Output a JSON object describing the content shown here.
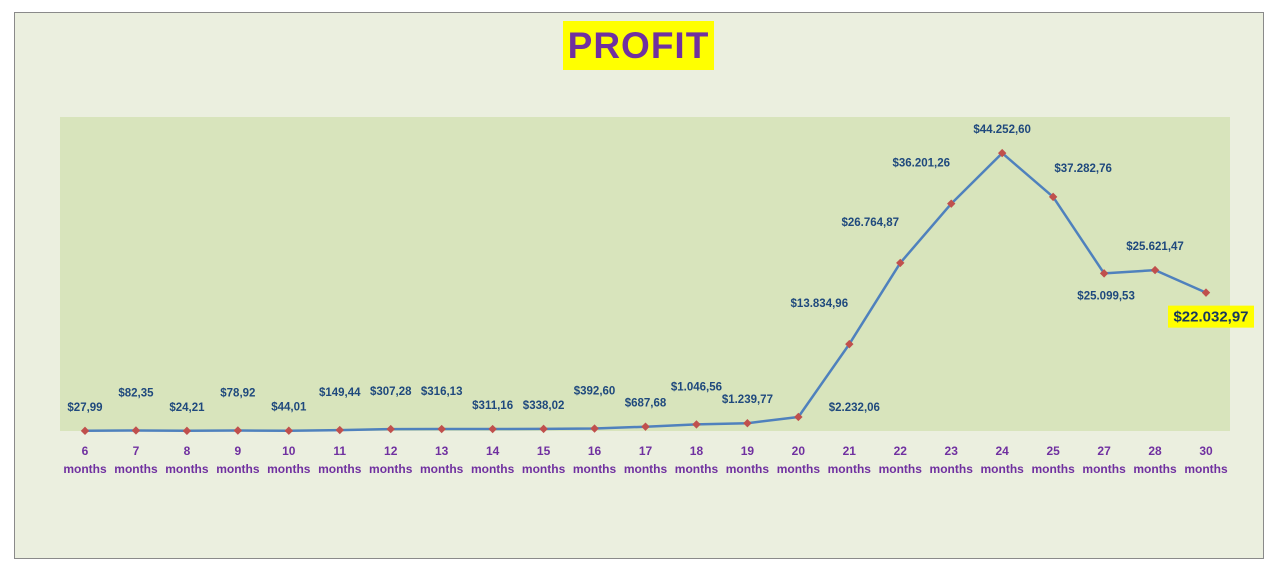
{
  "chart_data": {
    "type": "line",
    "title": "PROFIT",
    "categories": [
      "6",
      "7",
      "8",
      "9",
      "10",
      "11",
      "12",
      "13",
      "14",
      "15",
      "16",
      "17",
      "18",
      "19",
      "20",
      "21",
      "22",
      "23",
      "24",
      "25",
      "27",
      "28",
      "30"
    ],
    "category_unit": "months",
    "series": [
      {
        "values": [
          27.99,
          82.35,
          24.21,
          78.92,
          44.01,
          149.44,
          307.28,
          316.13,
          311.16,
          338.02,
          392.6,
          687.68,
          1046.56,
          1239.77,
          2232.06,
          13834.96,
          26764.87,
          36201.26,
          44252.6,
          37282.76,
          25099.53,
          25621.47,
          22032.97
        ],
        "labels": [
          "$27,99",
          "$82,35",
          "$24,21",
          "$78,92",
          "$44,01",
          "$149,44",
          "$307,28",
          "$316,13",
          "$311,16",
          "$338,02",
          "$392,60",
          "$687,68",
          "$1.046,56",
          "$1.239,77",
          "$2.232,06",
          "$13.834,96",
          "$26.764,87",
          "$36.201,26",
          "$44.252,60",
          "$37.282,76",
          "$25.099,53",
          "$25.621,47",
          "$22.032,97"
        ],
        "label_positions": [
          "above",
          "above-high",
          "above",
          "above-high",
          "above",
          "above-high",
          "above-high",
          "above-high",
          "above",
          "above",
          "above-high",
          "above",
          "above-high",
          "above",
          "right",
          "above-left",
          "above-left",
          "above-left",
          "above",
          "above-right",
          "below",
          "above",
          "below-highlight"
        ],
        "line_color": "#4f81bd",
        "marker_color": "#c0504d"
      }
    ],
    "ylim": [
      0,
      50000
    ],
    "highlight_label_color": "#ffff00",
    "grid": false,
    "legend": "none"
  }
}
